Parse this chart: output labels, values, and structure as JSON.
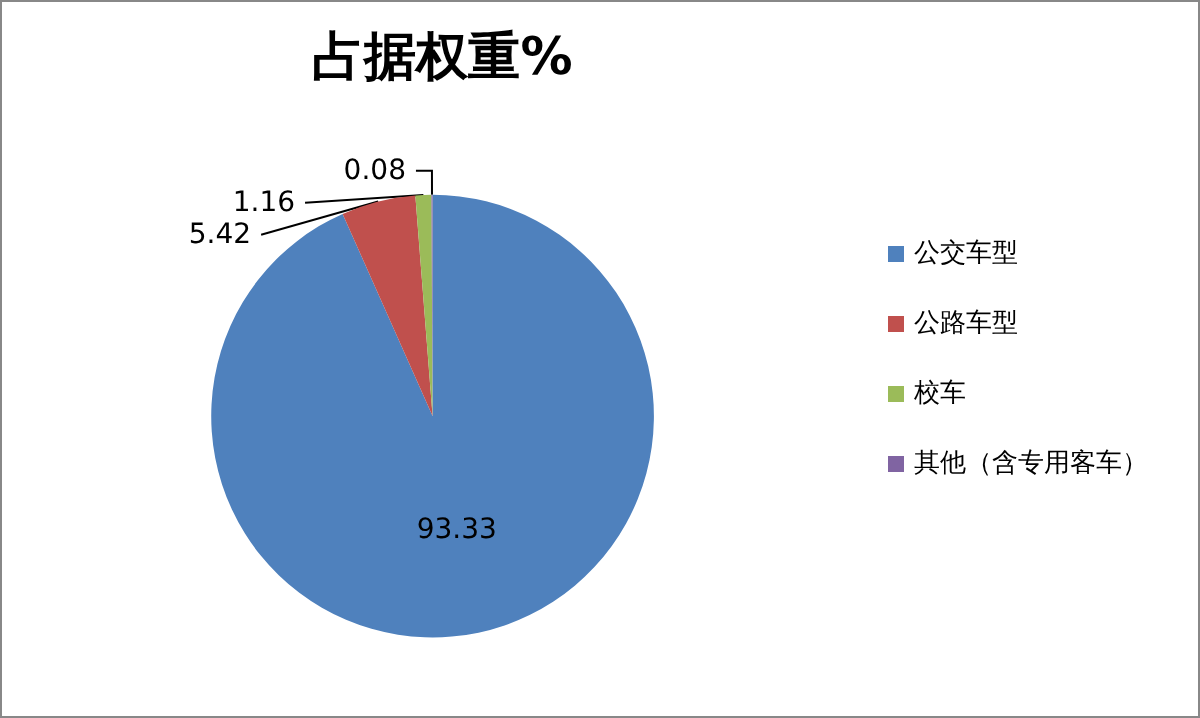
{
  "chart_data": {
    "type": "pie",
    "title": "占据权重%",
    "categories": [
      "公交车型",
      "公路车型",
      "校车",
      "其他（含专用客车）"
    ],
    "values": [
      93.33,
      5.42,
      1.16,
      0.08
    ],
    "colors": [
      "#4f81bd",
      "#c0504d",
      "#9bbb59",
      "#8064a2"
    ],
    "data_labels": true,
    "legend": "right"
  }
}
